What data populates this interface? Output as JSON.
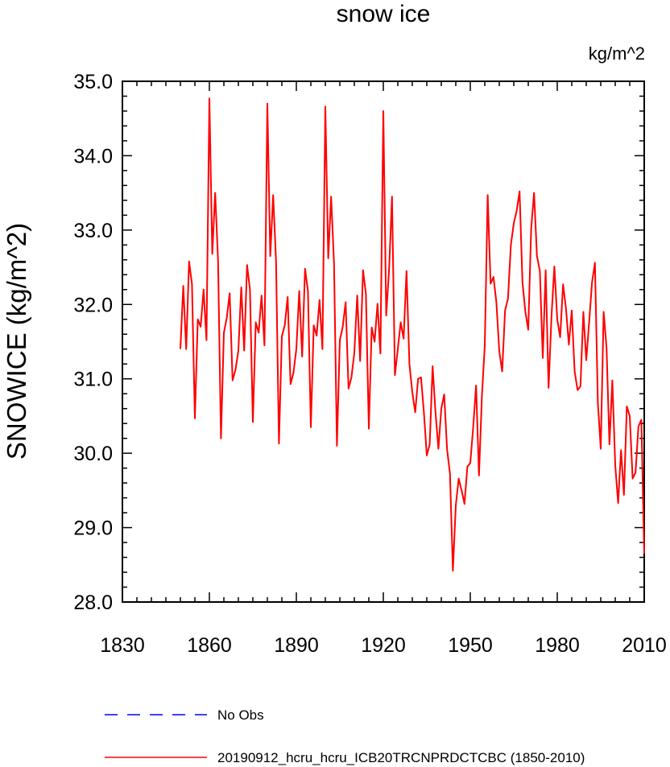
{
  "chart_data": {
    "type": "line",
    "title": "snow ice",
    "units_label": "kg/m^2",
    "ylabel": "SNOWICE  (kg/m^2)",
    "xlim": [
      1830,
      2010
    ],
    "ylim": [
      28.0,
      35.0
    ],
    "x_ticks": [
      1830,
      1860,
      1890,
      1920,
      1950,
      1980,
      2010
    ],
    "x_tick_labels": [
      "1830",
      "1860",
      "1890",
      "1920",
      "1950",
      "1980",
      "2010"
    ],
    "y_ticks": [
      28.0,
      29.0,
      30.0,
      31.0,
      32.0,
      33.0,
      34.0,
      35.0
    ],
    "y_tick_labels": [
      "28.0",
      "29.0",
      "30.0",
      "31.0",
      "32.0",
      "33.0",
      "34.0",
      "35.0"
    ],
    "grid": false,
    "legend_position": "bottom",
    "series": [
      {
        "name": "No Obs",
        "color": "#0000ff",
        "style": "dashed",
        "x": [],
        "y": []
      },
      {
        "name": "20190912_hcru_hcru_ICB20TRCNPRDCTCBC (1850-2010)",
        "color": "#ff0000",
        "style": "solid",
        "x": [
          1850,
          1851,
          1852,
          1853,
          1854,
          1855,
          1856,
          1857,
          1858,
          1859,
          1860,
          1861,
          1862,
          1863,
          1864,
          1865,
          1866,
          1867,
          1868,
          1869,
          1870,
          1871,
          1872,
          1873,
          1874,
          1875,
          1876,
          1877,
          1878,
          1879,
          1880,
          1881,
          1882,
          1883,
          1884,
          1885,
          1886,
          1887,
          1888,
          1889,
          1890,
          1891,
          1892,
          1893,
          1894,
          1895,
          1896,
          1897,
          1898,
          1899,
          1900,
          1901,
          1902,
          1903,
          1904,
          1905,
          1906,
          1907,
          1908,
          1909,
          1910,
          1911,
          1912,
          1913,
          1914,
          1915,
          1916,
          1917,
          1918,
          1919,
          1920,
          1921,
          1922,
          1923,
          1924,
          1925,
          1926,
          1927,
          1928,
          1929,
          1930,
          1931,
          1932,
          1933,
          1934,
          1935,
          1936,
          1937,
          1938,
          1939,
          1940,
          1941,
          1942,
          1943,
          1944,
          1945,
          1946,
          1947,
          1948,
          1949,
          1950,
          1951,
          1952,
          1953,
          1954,
          1955,
          1956,
          1957,
          1958,
          1959,
          1960,
          1961,
          1962,
          1963,
          1964,
          1965,
          1966,
          1967,
          1968,
          1969,
          1970,
          1971,
          1972,
          1973,
          1974,
          1975,
          1976,
          1977,
          1978,
          1979,
          1980,
          1981,
          1982,
          1983,
          1984,
          1985,
          1986,
          1987,
          1988,
          1989,
          1990,
          1991,
          1992,
          1993,
          1994,
          1995,
          1996,
          1997,
          1998,
          1999,
          2000,
          2001,
          2002,
          2003,
          2004,
          2005,
          2006,
          2007,
          2008,
          2009,
          2010
        ],
        "y": [
          31.4,
          32.25,
          31.4,
          32.58,
          32.27,
          30.47,
          31.8,
          31.7,
          32.2,
          31.52,
          34.77,
          32.68,
          33.5,
          32.58,
          30.2,
          31.62,
          31.82,
          32.15,
          30.98,
          31.12,
          31.38,
          32.23,
          31.38,
          32.53,
          32.2,
          30.42,
          31.76,
          31.62,
          32.12,
          31.45,
          34.7,
          32.65,
          33.47,
          32.58,
          30.13,
          31.57,
          31.72,
          32.1,
          30.93,
          31.08,
          31.4,
          32.18,
          31.3,
          32.48,
          32.18,
          30.35,
          31.72,
          31.58,
          32.06,
          31.4,
          34.66,
          32.62,
          33.45,
          32.55,
          30.1,
          31.52,
          31.7,
          32.03,
          30.87,
          31.02,
          31.35,
          32.12,
          31.24,
          32.46,
          32.14,
          30.33,
          31.69,
          31.5,
          32.01,
          31.34,
          34.6,
          31.85,
          32.48,
          33.45,
          31.05,
          31.4,
          31.76,
          31.54,
          32.45,
          31.2,
          30.82,
          30.55,
          31.0,
          31.02,
          30.55,
          29.97,
          30.12,
          31.17,
          30.55,
          30.06,
          30.6,
          30.79,
          30.05,
          29.72,
          28.42,
          29.3,
          29.66,
          29.5,
          29.32,
          29.82,
          29.87,
          30.35,
          30.91,
          29.7,
          30.76,
          31.45,
          33.47,
          32.28,
          32.37,
          32.03,
          31.37,
          31.1,
          31.92,
          32.08,
          32.8,
          33.09,
          33.26,
          33.52,
          32.3,
          31.9,
          31.66,
          33.02,
          33.5,
          32.65,
          32.45,
          31.28,
          32.46,
          30.88,
          31.83,
          32.51,
          31.8,
          31.56,
          32.27,
          31.95,
          31.46,
          31.92,
          31.1,
          30.85,
          30.9,
          31.9,
          31.25,
          31.76,
          32.3,
          32.56,
          30.68,
          30.06,
          31.9,
          31.42,
          30.12,
          30.98,
          29.84,
          29.33,
          30.04,
          29.44,
          30.63,
          30.5,
          29.66,
          29.74,
          30.36,
          30.45,
          28.65
        ]
      }
    ]
  }
}
